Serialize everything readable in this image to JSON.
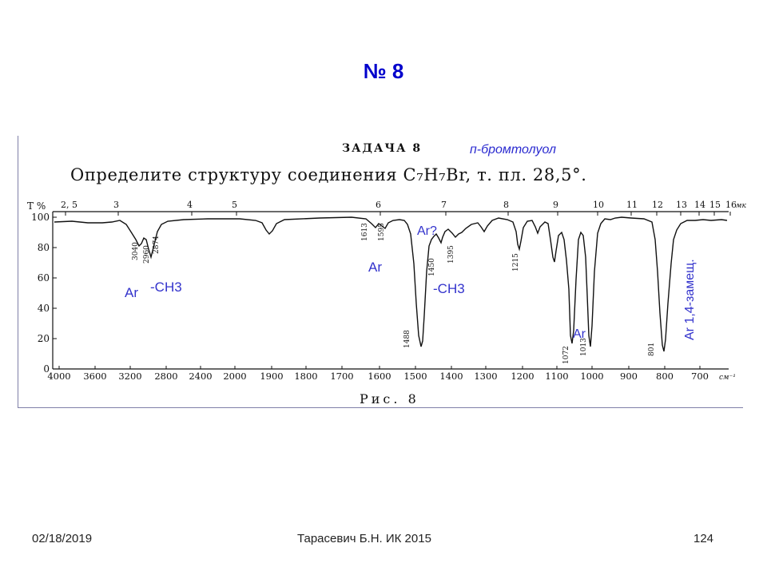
{
  "slide": {
    "title": "№ 8",
    "task_title": "ЗАДАЧА 8",
    "compound": "п-бромтолуол",
    "question": "Определите структуру соединения C₇H₇Br, т. пл. 28,5°.",
    "figure_caption": "Рис. 8"
  },
  "footer": {
    "date": "02/18/2019",
    "author": "Тарасевич Б.Н.  ИК 2015",
    "page": "124"
  },
  "colors": {
    "title": "#0000cc",
    "annotation": "#3333cc",
    "spectrum_line": "#111111"
  },
  "chart_data": {
    "type": "line",
    "ylabel": "T %",
    "top_axis_label": "мк",
    "x_unit_label": "см⁻¹",
    "y_ticks": [
      "100",
      "80",
      "60",
      "40",
      "20",
      "0"
    ],
    "top_ticks": [
      "2, 5",
      "3",
      "4",
      "5",
      "6",
      "7",
      "8",
      "9",
      "10",
      "11",
      "12",
      "13",
      "14",
      "15",
      "16"
    ],
    "bottom_ticks": [
      "4000",
      "3600",
      "3200",
      "2800",
      "2400",
      "2000",
      "1900",
      "1800",
      "1700",
      "1600",
      "1500",
      "1400",
      "1300",
      "1200",
      "1100",
      "1000",
      "900",
      "800",
      "700"
    ],
    "peak_labels": [
      "3040",
      "2960",
      "2874",
      "1613",
      "1595",
      "1488",
      "1450",
      "1395",
      "1215",
      "1072",
      "1013",
      "801"
    ],
    "annotations": [
      "Ar",
      "-CH3",
      "Ar",
      "Ar?",
      "-CH3",
      "Ar",
      "Ar 1,4-замещ."
    ],
    "ylim": [
      0,
      100
    ],
    "xlim": [
      4000,
      650
    ]
  }
}
